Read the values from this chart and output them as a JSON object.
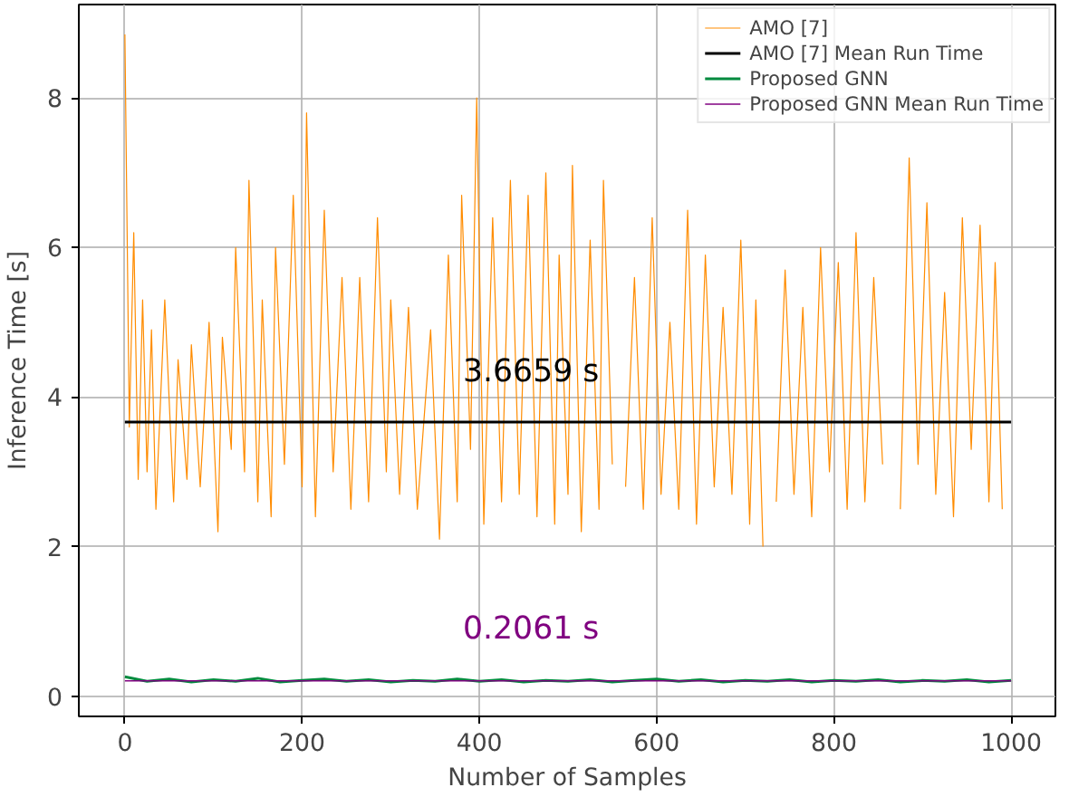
{
  "chart_data": {
    "type": "line",
    "xlabel": "Number of Samples",
    "ylabel": "Inference Time [s]",
    "xlim": [
      -52,
      1050
    ],
    "ylim": [
      -0.27,
      9.25
    ],
    "xticks": [
      0,
      200,
      400,
      600,
      800,
      1000
    ],
    "yticks": [
      0,
      2,
      4,
      6,
      8
    ],
    "grid": true,
    "legend": "top right",
    "annotations": [
      "3.6659 s",
      "0.2061 s"
    ],
    "series": [
      {
        "name": "AMO [7]",
        "color": "#ff8c00",
        "x": [
          0,
          5,
          10,
          15,
          20,
          25,
          30,
          35,
          45,
          55,
          60,
          70,
          75,
          85,
          95,
          105,
          110,
          120,
          125,
          135,
          140,
          150,
          155,
          165,
          170,
          180,
          190,
          200,
          205,
          215,
          225,
          235,
          245,
          255,
          265,
          275,
          285,
          295,
          300,
          310,
          320,
          330,
          345,
          355,
          365,
          375,
          380,
          390,
          397,
          405,
          415,
          425,
          435,
          445,
          455,
          465,
          475,
          485,
          490,
          500,
          505,
          515,
          525,
          535,
          540,
          550,
          555,
          565,
          575,
          585,
          595,
          605,
          615,
          625,
          635,
          645,
          655,
          665,
          675,
          685,
          695,
          705,
          712,
          720,
          728,
          735,
          745,
          755,
          765,
          775,
          785,
          795,
          805,
          815,
          825,
          835,
          845,
          855,
          866,
          875,
          885,
          895,
          905,
          915,
          925,
          935,
          945,
          955,
          965,
          975,
          982,
          990
        ],
        "values": [
          8.85,
          3.6,
          6.2,
          2.9,
          5.3,
          3.0,
          4.9,
          2.5,
          5.3,
          2.6,
          4.5,
          2.9,
          4.7,
          2.8,
          5.0,
          2.2,
          4.8,
          3.3,
          6.0,
          3.0,
          6.9,
          2.6,
          5.3,
          2.4,
          6.0,
          3.1,
          6.7,
          2.8,
          7.8,
          2.4,
          6.5,
          3.0,
          5.6,
          2.5,
          5.6,
          2.6,
          6.4,
          3.0,
          5.3,
          2.7,
          5.2,
          2.5,
          4.9,
          2.1,
          5.9,
          2.6,
          6.7,
          3.3,
          8.0,
          2.3,
          6.4,
          2.6,
          6.9,
          2.7,
          6.7,
          2.4,
          7.0,
          2.3,
          5.9,
          2.7,
          7.1,
          2.2,
          6.1,
          2.5,
          6.9,
          3.1,
          null,
          2.8,
          5.6,
          2.5,
          6.4,
          2.7,
          5.0,
          2.5,
          6.5,
          2.3,
          5.9,
          2.8,
          5.2,
          2.7,
          6.1,
          2.3,
          5.3,
          2.0,
          null,
          2.6,
          5.7,
          2.7,
          5.2,
          2.4,
          6.0,
          3.0,
          5.8,
          2.5,
          6.2,
          2.6,
          5.6,
          3.1,
          null,
          2.5,
          7.2,
          3.1,
          6.6,
          2.7,
          5.4,
          2.4,
          6.4,
          3.3,
          6.3,
          2.6,
          5.8,
          2.5
        ]
      },
      {
        "name": "AMO [7] Mean Run Time",
        "color": "#000000",
        "x": [
          0,
          1000
        ],
        "values": [
          3.6659,
          3.6659
        ]
      },
      {
        "name": "Proposed GNN",
        "color": "#008a3e",
        "x": [
          0,
          25,
          50,
          75,
          100,
          125,
          150,
          175,
          200,
          225,
          250,
          275,
          300,
          325,
          350,
          375,
          400,
          425,
          450,
          475,
          500,
          525,
          550,
          575,
          600,
          625,
          650,
          675,
          700,
          725,
          750,
          775,
          800,
          825,
          850,
          875,
          900,
          925,
          950,
          975,
          1000
        ],
        "values": [
          0.26,
          0.2,
          0.23,
          0.19,
          0.22,
          0.2,
          0.24,
          0.19,
          0.21,
          0.23,
          0.2,
          0.22,
          0.19,
          0.21,
          0.2,
          0.23,
          0.2,
          0.22,
          0.19,
          0.21,
          0.2,
          0.22,
          0.19,
          0.21,
          0.23,
          0.2,
          0.22,
          0.19,
          0.21,
          0.2,
          0.22,
          0.19,
          0.21,
          0.2,
          0.22,
          0.19,
          0.21,
          0.2,
          0.22,
          0.19,
          0.21
        ]
      },
      {
        "name": "Proposed GNN Mean Run Time",
        "color": "#800080",
        "x": [
          0,
          1000
        ],
        "values": [
          0.2061,
          0.2061
        ]
      }
    ]
  }
}
